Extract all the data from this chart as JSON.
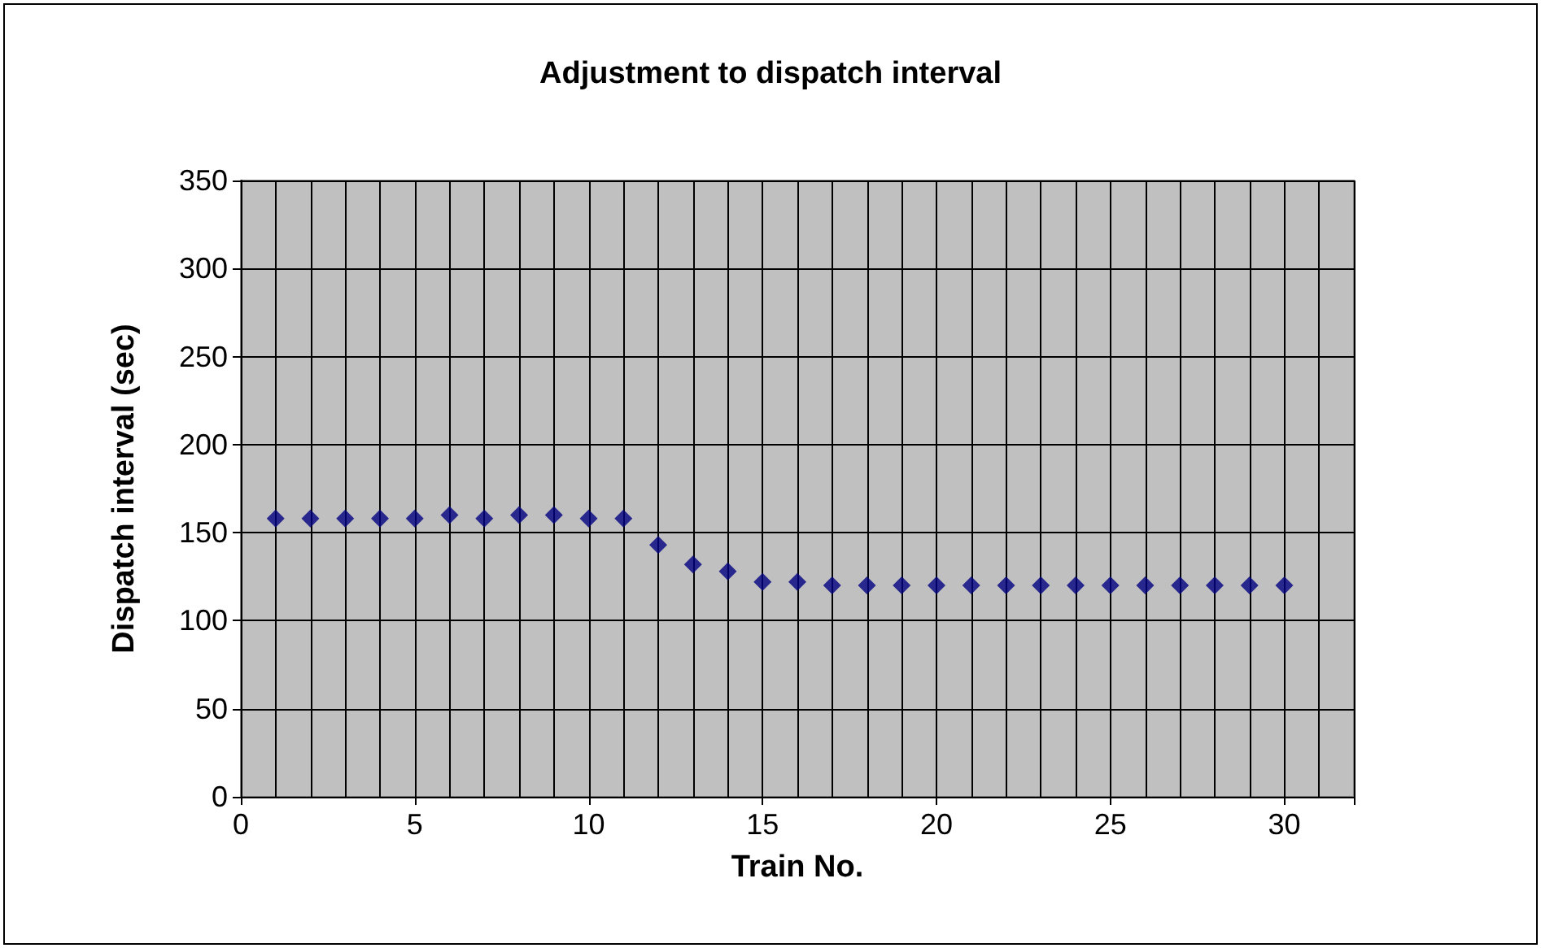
{
  "chart_data": {
    "type": "scatter",
    "title": "Adjustment to dispatch interval",
    "xlabel": "Train No.",
    "ylabel": "Dispatch interval (sec)",
    "x": [
      1,
      2,
      3,
      4,
      5,
      6,
      7,
      8,
      9,
      10,
      11,
      12,
      13,
      14,
      15,
      16,
      17,
      18,
      19,
      20,
      21,
      22,
      23,
      24,
      25,
      26,
      27,
      28,
      29,
      30
    ],
    "series": [
      {
        "color": "#000080",
        "values": [
          158,
          158,
          158,
          158,
          158,
          160,
          158,
          160,
          160,
          158,
          158,
          143,
          132,
          128,
          122,
          122,
          120,
          120,
          120,
          120,
          120,
          120,
          120,
          120,
          120,
          120,
          120,
          120,
          120,
          120
        ]
      }
    ],
    "xlim": [
      0,
      32
    ],
    "xticks": [
      0,
      5,
      10,
      15,
      20,
      25,
      30
    ],
    "ylim": [
      0,
      350
    ],
    "yticks": [
      0,
      50,
      100,
      150,
      200,
      250,
      300,
      350
    ],
    "grid": true,
    "marker": "diamond"
  }
}
